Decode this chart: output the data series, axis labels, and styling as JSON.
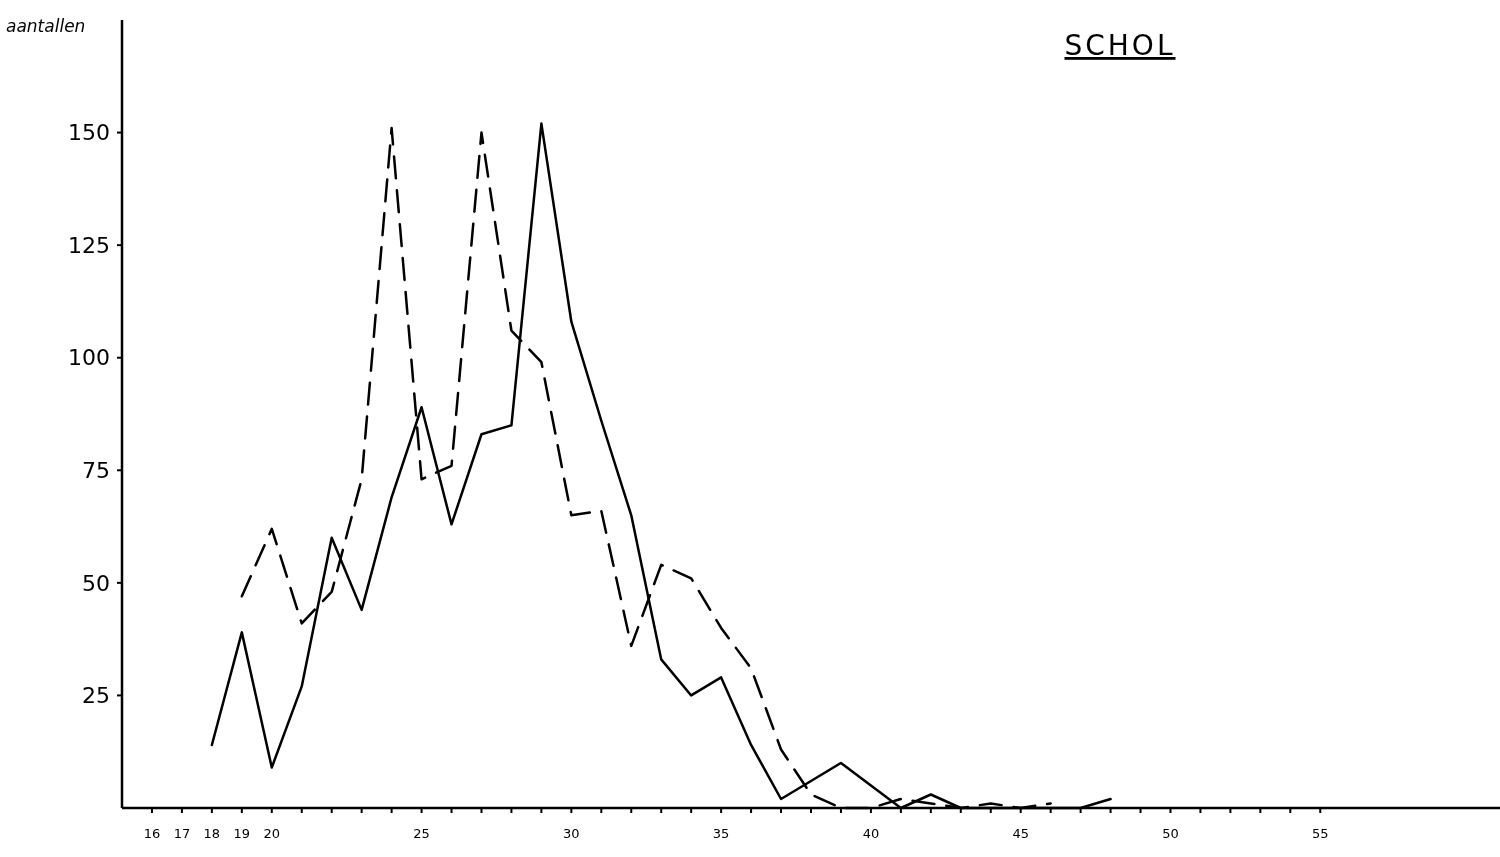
{
  "chart_data": {
    "type": "line",
    "title": "SCHOL",
    "ylabel": "aantallen",
    "xlim": [
      15,
      61
    ],
    "ylim": [
      0,
      175
    ],
    "xticks": [
      16,
      17,
      18,
      19,
      20,
      {
        "value": 21,
        "label": null
      },
      {
        "value": 22,
        "label": null
      },
      {
        "value": 23,
        "label": null
      },
      {
        "value": 24,
        "label": null
      },
      25,
      {
        "value": 26,
        "label": null
      },
      {
        "value": 27,
        "label": null
      },
      {
        "value": 28,
        "label": null
      },
      {
        "value": 29,
        "label": null
      },
      30,
      {
        "value": 31,
        "label": null
      },
      {
        "value": 32,
        "label": null
      },
      {
        "value": 33,
        "label": null
      },
      {
        "value": 34,
        "label": null
      },
      35,
      {
        "value": 36,
        "label": null
      },
      {
        "value": 37,
        "label": null
      },
      {
        "value": 38,
        "label": null
      },
      {
        "value": 39,
        "label": null
      },
      40,
      {
        "value": 41,
        "label": null
      },
      {
        "value": 42,
        "label": null
      },
      {
        "value": 43,
        "label": null
      },
      {
        "value": 44,
        "label": null
      },
      45,
      {
        "value": 46,
        "label": null
      },
      {
        "value": 47,
        "label": null
      },
      {
        "value": 48,
        "label": null
      },
      {
        "value": 49,
        "label": null
      },
      50,
      {
        "value": 51,
        "label": null
      },
      {
        "value": 52,
        "label": null
      },
      {
        "value": 53,
        "label": null
      },
      {
        "value": 54,
        "label": null
      },
      55
    ],
    "yticks": [
      25,
      50,
      75,
      100,
      125,
      150
    ],
    "grid": false,
    "marker": "none",
    "series": [
      {
        "color": "#000000",
        "line_style": "solid",
        "x": [
          18,
          19,
          20,
          21,
          22,
          23,
          24,
          25,
          26,
          27,
          28,
          29,
          30,
          31,
          32,
          33,
          34,
          35,
          36,
          37,
          38,
          39,
          40,
          41,
          42,
          43,
          44,
          45,
          46,
          47,
          48
        ],
        "values": [
          14,
          39,
          9,
          27,
          60,
          44,
          69,
          89,
          63,
          83,
          85,
          152,
          108,
          86,
          65,
          33,
          25,
          29,
          14,
          2,
          6,
          10,
          5,
          0,
          3,
          0,
          0,
          0,
          0,
          0,
          2
        ]
      },
      {
        "color": "#000000",
        "line_style": "dashed",
        "x": [
          19,
          20,
          21,
          22,
          23,
          24,
          25,
          26,
          27,
          28,
          29,
          30,
          31,
          32,
          33,
          34,
          35,
          36,
          37,
          38,
          39,
          40,
          41,
          42,
          43,
          44,
          45,
          46
        ],
        "values": [
          47,
          62,
          41,
          48,
          73,
          151,
          73,
          76,
          150,
          106,
          99,
          65,
          66,
          36,
          54,
          51,
          40,
          31,
          13,
          3,
          0,
          0,
          2,
          1,
          0,
          1,
          0,
          1
        ]
      }
    ]
  }
}
